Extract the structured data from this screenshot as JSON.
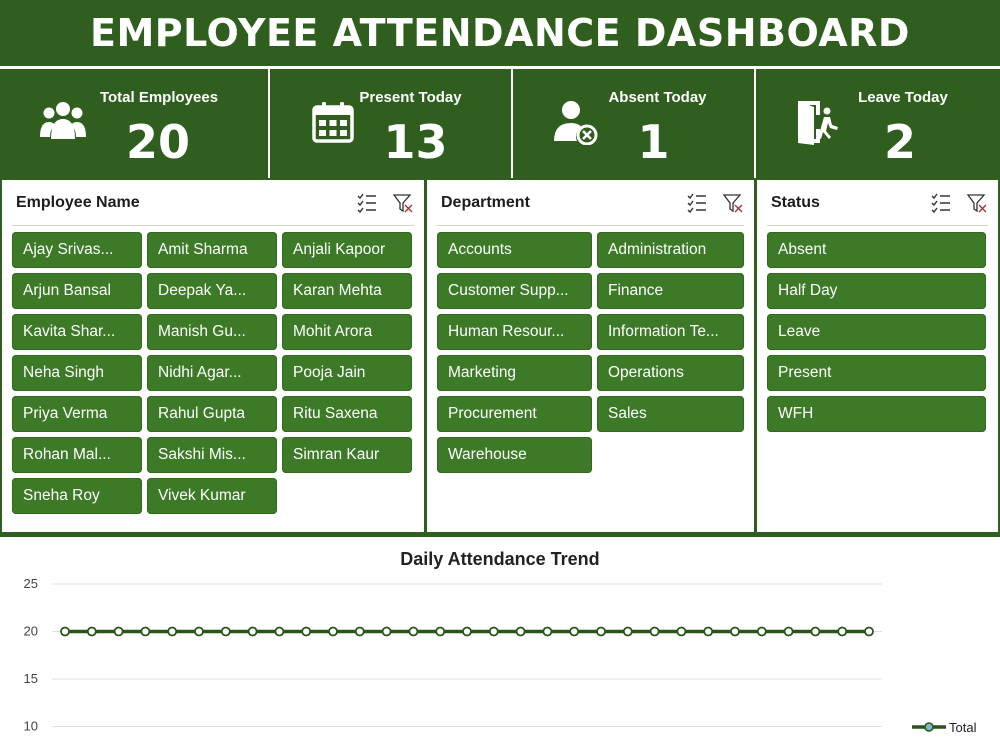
{
  "header": {
    "title": "EMPLOYEE ATTENDANCE DASHBOARD"
  },
  "kpis": [
    {
      "label": "Total Employees",
      "value": "20",
      "icon": "people-icon"
    },
    {
      "label": "Present Today",
      "value": "13",
      "icon": "calendar-icon"
    },
    {
      "label": "Absent Today",
      "value": "1",
      "icon": "user-remove-icon"
    },
    {
      "label": "Leave Today",
      "value": "2",
      "icon": "exit-door-icon"
    }
  ],
  "slicers": {
    "employee": {
      "title": "Employee Name",
      "items": [
        "Ajay Srivas...",
        "Amit Sharma",
        "Anjali Kapoor",
        "Arjun Bansal",
        "Deepak Ya...",
        "Karan Mehta",
        "Kavita Shar...",
        "Manish Gu...",
        "Mohit Arora",
        "Neha Singh",
        "Nidhi Agar...",
        "Pooja Jain",
        "Priya Verma",
        "Rahul Gupta",
        "Ritu Saxena",
        "Rohan Mal...",
        "Sakshi Mis...",
        "Simran Kaur",
        "Sneha Roy",
        "Vivek Kumar"
      ]
    },
    "department": {
      "title": "Department",
      "items": [
        "Accounts",
        "Administration",
        "Customer Supp...",
        "Finance",
        "Human Resour...",
        "Information Te...",
        "Marketing",
        "Operations",
        "Procurement",
        "Sales",
        "Warehouse"
      ]
    },
    "status": {
      "title": "Status",
      "items": [
        "Absent",
        "Half Day",
        "Leave",
        "Present",
        "WFH"
      ]
    }
  },
  "colors": {
    "header": "#2f5e1e",
    "chip": "#3d7a27",
    "line": "#2a5519",
    "marker_fill": "#ffffff"
  },
  "chart_data": {
    "type": "line",
    "title": "Daily Attendance Trend",
    "xlabel": "",
    "ylabel": "",
    "y_ticks": [
      "25",
      "20",
      "15",
      "10"
    ],
    "ylim": [
      10,
      25
    ],
    "grid": true,
    "legend_position": "bottom-right",
    "series": [
      {
        "name": "Total",
        "values": [
          20,
          20,
          20,
          20,
          20,
          20,
          20,
          20,
          20,
          20,
          20,
          20,
          20,
          20,
          20,
          20,
          20,
          20,
          20,
          20,
          20,
          20,
          20,
          20,
          20,
          20,
          20,
          20,
          20,
          20,
          20
        ]
      }
    ]
  }
}
